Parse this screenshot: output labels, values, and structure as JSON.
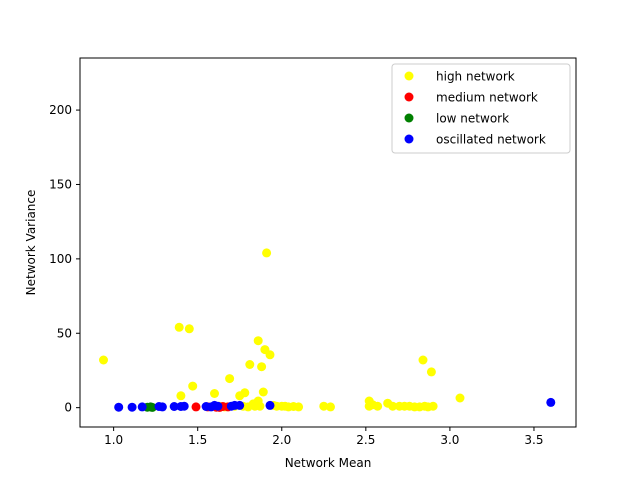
{
  "chart_data": {
    "type": "scatter",
    "title": "",
    "xlabel": "Network Mean",
    "ylabel": "Network Variance",
    "xlim": [
      0.8,
      3.75
    ],
    "ylim": [
      -13,
      235
    ],
    "xticks": [
      1.0,
      1.5,
      2.0,
      2.5,
      3.0,
      3.5
    ],
    "xtick_labels": [
      "1.0",
      "1.5",
      "2.0",
      "2.5",
      "3.0",
      "3.5"
    ],
    "yticks": [
      0,
      50,
      100,
      150,
      200
    ],
    "ytick_labels": [
      "0",
      "50",
      "100",
      "150",
      "200"
    ],
    "grid": false,
    "legend_position": "top-right",
    "series": [
      {
        "name": "high network",
        "color": "#ffff00",
        "points": [
          [
            0.94,
            32
          ],
          [
            1.39,
            54
          ],
          [
            1.45,
            53
          ],
          [
            1.47,
            14.5
          ],
          [
            1.4,
            8
          ],
          [
            1.91,
            104
          ],
          [
            1.86,
            45
          ],
          [
            1.9,
            39
          ],
          [
            1.93,
            35.5
          ],
          [
            1.81,
            29
          ],
          [
            1.88,
            27.5
          ],
          [
            1.69,
            19.5
          ],
          [
            1.6,
            9.5
          ],
          [
            1.78,
            10
          ],
          [
            1.75,
            8
          ],
          [
            1.89,
            10.5
          ],
          [
            1.86,
            4.5
          ],
          [
            1.83,
            2.5
          ],
          [
            1.84,
            1
          ],
          [
            1.87,
            1
          ],
          [
            1.95,
            1.5
          ],
          [
            1.97,
            1
          ],
          [
            2.0,
            1
          ],
          [
            2.02,
            1
          ],
          [
            2.04,
            0.5
          ],
          [
            2.07,
            0.8
          ],
          [
            2.1,
            0.5
          ],
          [
            2.25,
            1
          ],
          [
            2.29,
            0.5
          ],
          [
            2.52,
            4.5
          ],
          [
            2.54,
            2
          ],
          [
            2.57,
            1
          ],
          [
            2.52,
            1
          ],
          [
            2.63,
            3
          ],
          [
            2.66,
            1
          ],
          [
            2.7,
            1
          ],
          [
            2.73,
            1
          ],
          [
            2.76,
            1
          ],
          [
            2.79,
            0.5
          ],
          [
            2.82,
            0.5
          ],
          [
            2.85,
            1
          ],
          [
            2.87,
            0.5
          ],
          [
            2.9,
            1
          ],
          [
            2.84,
            32
          ],
          [
            2.89,
            24
          ],
          [
            3.06,
            6.5
          ],
          [
            1.77,
            1
          ],
          [
            1.8,
            0.5
          ],
          [
            1.72,
            1
          ],
          [
            1.66,
            0.5
          ],
          [
            1.63,
            1
          ]
        ]
      },
      {
        "name": "medium network",
        "color": "#ff0000",
        "points": [
          [
            1.49,
            0.5
          ],
          [
            1.56,
            0.5
          ],
          [
            1.61,
            0.3
          ],
          [
            1.65,
            0.8
          ],
          [
            1.68,
            0.5
          ],
          [
            1.63,
            0.2
          ]
        ]
      },
      {
        "name": "low network",
        "color": "#008000",
        "points": [
          [
            1.2,
            0.3
          ],
          [
            1.22,
            0.5
          ],
          [
            1.23,
            0.2
          ]
        ]
      },
      {
        "name": "oscillated network",
        "color": "#0000ff",
        "points": [
          [
            1.03,
            0.3
          ],
          [
            1.11,
            0.3
          ],
          [
            1.17,
            0.5
          ],
          [
            1.27,
            0.8
          ],
          [
            1.29,
            0.5
          ],
          [
            1.36,
            0.8
          ],
          [
            1.4,
            0.8
          ],
          [
            1.42,
            1
          ],
          [
            1.55,
            0.8
          ],
          [
            1.58,
            0.5
          ],
          [
            1.6,
            1.5
          ],
          [
            1.62,
            1
          ],
          [
            1.7,
            1
          ],
          [
            1.72,
            1.5
          ],
          [
            1.75,
            1.5
          ],
          [
            1.93,
            1.5
          ],
          [
            3.6,
            3.5
          ]
        ]
      }
    ]
  }
}
